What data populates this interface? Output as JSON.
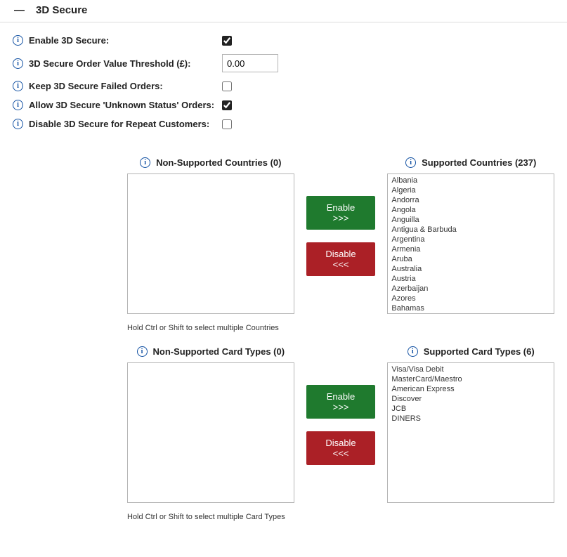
{
  "header": {
    "title": "3D Secure"
  },
  "settings": {
    "enable_3ds": {
      "label": "Enable 3D Secure:",
      "checked": true
    },
    "threshold": {
      "label": "3D Secure Order Value Threshold (£):",
      "value": "0.00"
    },
    "keep_failed": {
      "label": "Keep 3D Secure Failed Orders:",
      "checked": false
    },
    "allow_unknown": {
      "label": "Allow 3D Secure 'Unknown Status' Orders:",
      "checked": true
    },
    "disable_repeat": {
      "label": "Disable 3D Secure for Repeat Customers:",
      "checked": false
    }
  },
  "countries": {
    "non_supported_header": "Non-Supported Countries (0)",
    "supported_header": "Supported Countries (237)",
    "enable_btn": "Enable >>>",
    "disable_btn": "Disable <<<",
    "helper": "Hold Ctrl or Shift to select multiple Countries",
    "supported_items": [
      "Albania",
      "Algeria",
      "Andorra",
      "Angola",
      "Anguilla",
      "Antigua & Barbuda",
      "Argentina",
      "Armenia",
      "Aruba",
      "Australia",
      "Austria",
      "Azerbaijan",
      "Azores",
      "Bahamas"
    ],
    "non_supported_items": []
  },
  "cardtypes": {
    "non_supported_header": "Non-Supported Card Types (0)",
    "supported_header": "Supported Card Types (6)",
    "enable_btn": "Enable >>>",
    "disable_btn": "Disable <<<",
    "helper": "Hold Ctrl or Shift to select multiple Card Types",
    "supported_items": [
      "Visa/Visa Debit",
      "MasterCard/Maestro",
      "American Express",
      "Discover",
      "JCB",
      "DINERS"
    ],
    "non_supported_items": []
  }
}
